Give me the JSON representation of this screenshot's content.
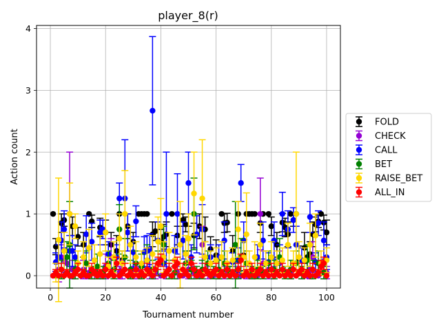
{
  "chart_data": {
    "type": "scatter",
    "error_bars": true,
    "title": "player_8(r)",
    "xlabel": "Tournament number",
    "ylabel": "Action count",
    "xlim": [
      -5,
      105
    ],
    "ylim": [
      -0.2,
      4.05
    ],
    "xticks": [
      0,
      20,
      40,
      60,
      80,
      100
    ],
    "yticks": [
      0,
      1,
      2,
      3,
      4
    ],
    "grid": true,
    "legend_position": "center-right",
    "series": [
      {
        "name": "FOLD",
        "color": "#000000",
        "x": [
          1,
          2,
          4,
          5,
          8,
          10,
          12,
          14,
          15,
          18,
          20,
          22,
          24,
          25,
          26,
          28,
          30,
          32,
          33,
          34,
          35,
          37,
          38,
          40,
          41,
          42,
          44,
          46,
          48,
          49,
          50,
          52,
          54,
          56,
          58,
          60,
          62,
          63,
          64,
          66,
          68,
          70,
          71,
          72,
          73,
          74,
          76,
          77,
          79,
          80,
          82,
          84,
          85,
          86,
          87,
          88,
          89,
          90,
          92,
          93,
          94,
          95,
          96,
          97,
          98,
          99,
          100
        ],
        "y": [
          1.0,
          0.47,
          0.85,
          0.9,
          0.8,
          0.63,
          0.5,
          1.0,
          0.88,
          0.78,
          0.7,
          0.5,
          0.4,
          1.0,
          0.25,
          0.8,
          0.55,
          1.0,
          1.0,
          1.0,
          1.0,
          0.67,
          0.72,
          0.55,
          0.63,
          0.67,
          1.0,
          0.65,
          0.9,
          0.83,
          0.6,
          0.65,
          0.8,
          0.75,
          0.43,
          0.33,
          1.0,
          0.85,
          0.86,
          0.4,
          1.0,
          0.33,
          1.0,
          1.0,
          1.0,
          1.0,
          0.85,
          1.0,
          1.0,
          0.8,
          0.5,
          0.86,
          0.78,
          0.67,
          1.0,
          0.9,
          1.0,
          0.28,
          0.45,
          0.3,
          0.35,
          0.67,
          0.83,
          0.88,
          1.0,
          0.86,
          0.7
        ],
        "err": [
          0.0,
          0.13,
          0.15,
          0.1,
          0.15,
          0.15,
          0.2,
          0.0,
          0.1,
          0.15,
          0.2,
          0.2,
          0.25,
          0.0,
          0.15,
          0.2,
          0.15,
          0.0,
          0.0,
          0.0,
          0.0,
          0.2,
          0.15,
          0.2,
          0.2,
          0.2,
          0.0,
          0.15,
          0.1,
          0.12,
          0.2,
          0.2,
          0.2,
          0.2,
          0.2,
          0.25,
          0.0,
          0.15,
          0.15,
          0.25,
          0.0,
          0.25,
          0.0,
          0.0,
          0.0,
          0.0,
          0.15,
          0.0,
          0.0,
          0.15,
          0.2,
          0.15,
          0.15,
          0.2,
          0.0,
          0.1,
          0.0,
          0.2,
          0.25,
          0.2,
          0.2,
          0.2,
          0.12,
          0.1,
          0.0,
          0.12,
          0.2
        ]
      },
      {
        "name": "CHECK",
        "color": "#9400D3",
        "x": [
          1,
          3,
          4,
          5,
          6,
          7,
          8,
          9,
          11,
          12,
          14,
          16,
          18,
          20,
          22,
          23,
          25,
          26,
          28,
          30,
          32,
          34,
          36,
          38,
          40,
          41,
          42,
          44,
          46,
          48,
          50,
          52,
          54,
          55,
          57,
          59,
          61,
          63,
          65,
          67,
          69,
          71,
          73,
          75,
          76,
          77,
          79,
          81,
          83,
          85,
          87,
          89,
          91,
          93,
          94,
          95,
          97,
          99,
          100
        ],
        "y": [
          0.0,
          0.1,
          0.3,
          0.25,
          0.2,
          1.0,
          0.1,
          0.05,
          0.0,
          0.1,
          0.05,
          0.1,
          0.05,
          0.15,
          0.3,
          0.0,
          0.05,
          0.1,
          0.0,
          0.05,
          0.05,
          0.0,
          0.1,
          0.05,
          0.0,
          0.2,
          0.05,
          0.0,
          0.05,
          0.0,
          0.1,
          0.05,
          0.0,
          0.5,
          0.05,
          0.0,
          0.1,
          0.05,
          0.0,
          0.05,
          0.0,
          0.05,
          0.05,
          0.0,
          1.0,
          0.2,
          0.1,
          0.05,
          0.2,
          0.0,
          0.05,
          0.0,
          0.05,
          0.0,
          0.1,
          0.3,
          0.0,
          0.05,
          0.05
        ],
        "err": [
          0.0,
          0.2,
          0.2,
          0.2,
          0.2,
          1.0,
          0.15,
          0.1,
          0.0,
          0.15,
          0.1,
          0.15,
          0.1,
          0.2,
          0.3,
          0.0,
          0.1,
          0.15,
          0.0,
          0.1,
          0.1,
          0.0,
          0.15,
          0.1,
          0.0,
          0.2,
          0.1,
          0.0,
          0.1,
          0.0,
          0.15,
          0.1,
          0.0,
          0.3,
          0.1,
          0.0,
          0.15,
          0.1,
          0.0,
          0.1,
          0.0,
          0.1,
          0.1,
          0.0,
          0.58,
          0.2,
          0.15,
          0.1,
          0.2,
          0.0,
          0.1,
          0.0,
          0.1,
          0.0,
          0.15,
          0.25,
          0.0,
          0.1,
          0.1
        ]
      },
      {
        "name": "CALL",
        "color": "#0000FF",
        "x": [
          2,
          3,
          4,
          5,
          7,
          8,
          9,
          13,
          15,
          18,
          19,
          21,
          24,
          25,
          27,
          28,
          30,
          31,
          34,
          35,
          36,
          37,
          39,
          41,
          42,
          45,
          46,
          48,
          50,
          51,
          53,
          55,
          58,
          61,
          63,
          66,
          68,
          69,
          70,
          75,
          77,
          79,
          81,
          83,
          84,
          86,
          88,
          89,
          91,
          94,
          96,
          97,
          99,
          100
        ],
        "y": [
          0.22,
          0.3,
          0.57,
          0.75,
          0.4,
          0.4,
          0.3,
          0.67,
          0.55,
          0.7,
          0.75,
          0.35,
          0.3,
          1.25,
          1.25,
          0.7,
          0.38,
          0.88,
          0.38,
          0.4,
          0.43,
          2.67,
          0.57,
          0.2,
          1.0,
          0.4,
          1.0,
          0.57,
          1.5,
          0.3,
          0.67,
          0.75,
          0.3,
          0.3,
          0.57,
          0.22,
          0.25,
          1.5,
          0.57,
          0.3,
          0.57,
          0.22,
          0.57,
          0.3,
          1.0,
          0.75,
          0.9,
          0.5,
          0.25,
          0.95,
          0.22,
          0.85,
          0.57,
          0.3
        ],
        "err": [
          0.15,
          0.2,
          0.3,
          0.3,
          0.25,
          0.25,
          0.2,
          0.3,
          0.3,
          0.2,
          0.15,
          0.2,
          0.2,
          0.25,
          0.95,
          0.3,
          0.25,
          0.25,
          0.25,
          0.25,
          0.25,
          1.2,
          0.3,
          0.2,
          1.0,
          0.25,
          0.65,
          0.3,
          0.5,
          0.2,
          0.3,
          0.4,
          0.2,
          0.2,
          0.3,
          0.15,
          0.2,
          0.3,
          0.3,
          0.2,
          0.3,
          0.15,
          0.3,
          0.2,
          0.35,
          0.3,
          0.2,
          0.3,
          0.2,
          0.25,
          0.15,
          0.2,
          0.3,
          0.2
        ]
      },
      {
        "name": "BET",
        "color": "#008000",
        "x": [
          2,
          4,
          6,
          7,
          9,
          11,
          13,
          15,
          17,
          19,
          21,
          23,
          25,
          27,
          29,
          31,
          33,
          35,
          37,
          39,
          41,
          43,
          45,
          47,
          49,
          51,
          52,
          53,
          55,
          57,
          59,
          61,
          63,
          65,
          67,
          68,
          69,
          71,
          73,
          75,
          77,
          79,
          81,
          83,
          85,
          87,
          89,
          91,
          93,
          95,
          97,
          99
        ],
        "y": [
          0.0,
          0.1,
          0.3,
          0.5,
          0.1,
          0.0,
          0.2,
          0.05,
          0.15,
          0.05,
          0.2,
          0.1,
          0.75,
          0.3,
          0.1,
          0.2,
          0.15,
          0.25,
          0.1,
          0.2,
          0.5,
          0.1,
          0.05,
          0.0,
          0.2,
          0.1,
          1.0,
          0.05,
          0.1,
          0.2,
          0.05,
          0.1,
          0.2,
          0.05,
          0.5,
          0.1,
          0.3,
          0.2,
          0.05,
          0.1,
          0.05,
          0.2,
          0.1,
          0.3,
          0.05,
          0.1,
          0.2,
          0.05,
          0.25,
          0.1,
          0.2,
          0.05
        ],
        "err": [
          0.0,
          0.15,
          0.25,
          0.7,
          0.15,
          0.0,
          0.2,
          0.1,
          0.2,
          0.1,
          0.2,
          0.15,
          0.4,
          0.3,
          0.15,
          0.2,
          0.2,
          0.25,
          0.15,
          0.2,
          0.3,
          0.15,
          0.1,
          0.0,
          0.2,
          0.15,
          0.58,
          0.1,
          0.15,
          0.2,
          0.1,
          0.15,
          0.2,
          0.1,
          0.7,
          0.15,
          0.3,
          0.2,
          0.1,
          0.15,
          0.1,
          0.2,
          0.15,
          0.3,
          0.1,
          0.15,
          0.2,
          0.1,
          0.25,
          0.15,
          0.2,
          0.1
        ]
      },
      {
        "name": "RAISE_BET",
        "color": "#FFD700",
        "x": [
          2,
          3,
          5,
          7,
          9,
          10,
          12,
          14,
          16,
          18,
          20,
          21,
          23,
          25,
          26,
          27,
          29,
          31,
          33,
          35,
          37,
          39,
          40,
          41,
          43,
          45,
          47,
          49,
          50,
          52,
          55,
          56,
          58,
          60,
          62,
          64,
          66,
          68,
          70,
          71,
          72,
          74,
          76,
          78,
          80,
          82,
          84,
          86,
          88,
          89,
          90,
          92,
          94,
          96,
          98,
          100
        ],
        "y": [
          0.05,
          0.58,
          0.4,
          1.0,
          0.8,
          0.2,
          0.3,
          0.45,
          0.25,
          0.35,
          0.7,
          0.15,
          0.3,
          0.6,
          0.2,
          1.0,
          0.5,
          0.3,
          0.2,
          0.25,
          0.35,
          0.55,
          0.8,
          0.3,
          0.4,
          0.25,
          0.5,
          0.35,
          0.6,
          1.33,
          1.25,
          0.3,
          0.2,
          0.25,
          0.3,
          0.2,
          0.25,
          0.75,
          0.3,
          0.67,
          0.2,
          0.3,
          0.5,
          0.2,
          0.3,
          0.2,
          0.25,
          0.5,
          0.2,
          1.0,
          0.3,
          0.25,
          0.5,
          0.65,
          0.2,
          0.25
        ],
        "err": [
          0.15,
          1.0,
          0.3,
          0.5,
          0.2,
          0.2,
          0.25,
          0.3,
          0.25,
          0.3,
          0.3,
          0.15,
          0.25,
          0.4,
          0.2,
          0.7,
          0.3,
          0.25,
          0.2,
          0.2,
          0.3,
          0.4,
          0.45,
          0.25,
          0.3,
          0.2,
          0.7,
          0.3,
          0.4,
          0.67,
          0.95,
          0.25,
          0.2,
          0.2,
          0.25,
          0.2,
          0.2,
          0.45,
          0.25,
          0.67,
          0.2,
          0.25,
          0.35,
          0.2,
          0.25,
          0.2,
          0.2,
          0.35,
          0.2,
          1.0,
          0.25,
          0.2,
          0.35,
          0.35,
          0.2,
          0.2
        ]
      },
      {
        "name": "ALL_IN",
        "color": "#FF0000",
        "x": [
          1,
          2,
          3,
          4,
          5,
          6,
          7,
          8,
          9,
          10,
          11,
          12,
          13,
          14,
          15,
          16,
          17,
          18,
          19,
          20,
          21,
          22,
          23,
          24,
          25,
          26,
          27,
          28,
          29,
          30,
          31,
          32,
          33,
          34,
          35,
          36,
          37,
          38,
          39,
          40,
          41,
          42,
          43,
          44,
          45,
          46,
          47,
          48,
          49,
          50,
          51,
          52,
          53,
          54,
          55,
          56,
          57,
          58,
          59,
          60,
          61,
          62,
          63,
          64,
          65,
          66,
          67,
          68,
          69,
          70,
          71,
          72,
          73,
          74,
          75,
          76,
          77,
          78,
          79,
          80,
          81,
          82,
          83,
          84,
          85,
          86,
          87,
          88,
          89,
          90,
          91,
          92,
          93,
          94,
          95,
          96,
          97,
          98,
          99,
          100
        ],
        "y": [
          0.0,
          0.05,
          0.0,
          0.1,
          0.0,
          0.05,
          0.0,
          0.0,
          0.05,
          0.1,
          0.0,
          0.05,
          0.0,
          0.0,
          0.1,
          0.05,
          0.0,
          0.05,
          0.0,
          0.1,
          0.0,
          0.05,
          0.0,
          0.2,
          0.0,
          0.05,
          0.1,
          0.0,
          0.05,
          0.0,
          0.1,
          0.0,
          0.05,
          0.0,
          0.1,
          0.05,
          0.0,
          0.1,
          0.2,
          0.25,
          0.0,
          0.05,
          0.1,
          0.0,
          0.15,
          0.2,
          0.0,
          0.1,
          0.05,
          0.0,
          0.2,
          0.1,
          0.0,
          0.05,
          0.0,
          0.1,
          0.05,
          0.0,
          0.05,
          0.1,
          0.0,
          0.05,
          0.0,
          0.1,
          0.0,
          0.05,
          0.0,
          0.1,
          0.25,
          0.0,
          0.05,
          0.0,
          0.1,
          0.0,
          0.05,
          0.1,
          0.0,
          0.05,
          0.0,
          0.1,
          0.0,
          0.05,
          0.0,
          0.1,
          0.0,
          0.05,
          0.0,
          0.1,
          0.0,
          0.05,
          0.1,
          0.0,
          0.05,
          0.0,
          0.1,
          0.0,
          0.05,
          0.15,
          0.2,
          0.0
        ],
        "err": [
          0.0,
          0.05,
          0.0,
          0.1,
          0.0,
          0.05,
          0.0,
          0.0,
          0.05,
          0.1,
          0.0,
          0.05,
          0.0,
          0.0,
          0.1,
          0.05,
          0.0,
          0.05,
          0.0,
          0.1,
          0.0,
          0.05,
          0.0,
          0.1,
          0.0,
          0.05,
          0.1,
          0.0,
          0.05,
          0.0,
          0.1,
          0.0,
          0.05,
          0.0,
          0.1,
          0.05,
          0.0,
          0.1,
          0.1,
          0.1,
          0.0,
          0.05,
          0.1,
          0.0,
          0.1,
          0.1,
          0.0,
          0.1,
          0.05,
          0.0,
          0.1,
          0.1,
          0.0,
          0.05,
          0.0,
          0.1,
          0.05,
          0.0,
          0.05,
          0.1,
          0.0,
          0.05,
          0.0,
          0.1,
          0.0,
          0.05,
          0.0,
          0.1,
          0.1,
          0.0,
          0.05,
          0.0,
          0.1,
          0.0,
          0.05,
          0.1,
          0.0,
          0.05,
          0.0,
          0.1,
          0.0,
          0.05,
          0.0,
          0.1,
          0.0,
          0.05,
          0.0,
          0.1,
          0.0,
          0.05,
          0.1,
          0.0,
          0.05,
          0.0,
          0.1,
          0.0,
          0.05,
          0.1,
          0.1,
          0.0
        ]
      }
    ]
  }
}
